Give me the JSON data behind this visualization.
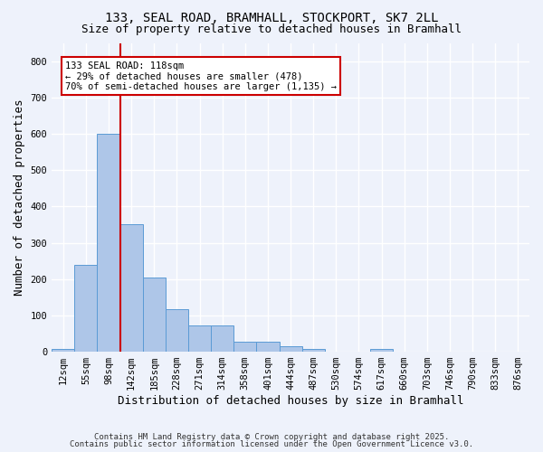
{
  "title1": "133, SEAL ROAD, BRAMHALL, STOCKPORT, SK7 2LL",
  "title2": "Size of property relative to detached houses in Bramhall",
  "xlabel": "Distribution of detached houses by size in Bramhall",
  "ylabel": "Number of detached properties",
  "categories": [
    "12sqm",
    "55sqm",
    "98sqm",
    "142sqm",
    "185sqm",
    "228sqm",
    "271sqm",
    "314sqm",
    "358sqm",
    "401sqm",
    "444sqm",
    "487sqm",
    "530sqm",
    "574sqm",
    "617sqm",
    "660sqm",
    "703sqm",
    "746sqm",
    "790sqm",
    "833sqm",
    "876sqm"
  ],
  "bar_heights": [
    8,
    238,
    600,
    352,
    205,
    117,
    72,
    72,
    27,
    27,
    14,
    8,
    0,
    0,
    8,
    0,
    0,
    0,
    0,
    0,
    0
  ],
  "bar_color": "#aec6e8",
  "bar_edge_color": "#5b9bd5",
  "red_line_x": 2.5,
  "annotation_text": "133 SEAL ROAD: 118sqm\n← 29% of detached houses are smaller (478)\n70% of semi-detached houses are larger (1,135) →",
  "annotation_box_color": "#ffffff",
  "annotation_box_edge": "#cc0000",
  "ylim": [
    0,
    850
  ],
  "yticks": [
    0,
    100,
    200,
    300,
    400,
    500,
    600,
    700,
    800
  ],
  "footer1": "Contains HM Land Registry data © Crown copyright and database right 2025.",
  "footer2": "Contains public sector information licensed under the Open Government Licence v3.0.",
  "background_color": "#eef2fb",
  "grid_color": "#ffffff",
  "title_fontsize": 10,
  "subtitle_fontsize": 9,
  "axis_label_fontsize": 9,
  "tick_fontsize": 7.5,
  "annot_fontsize": 7.5
}
